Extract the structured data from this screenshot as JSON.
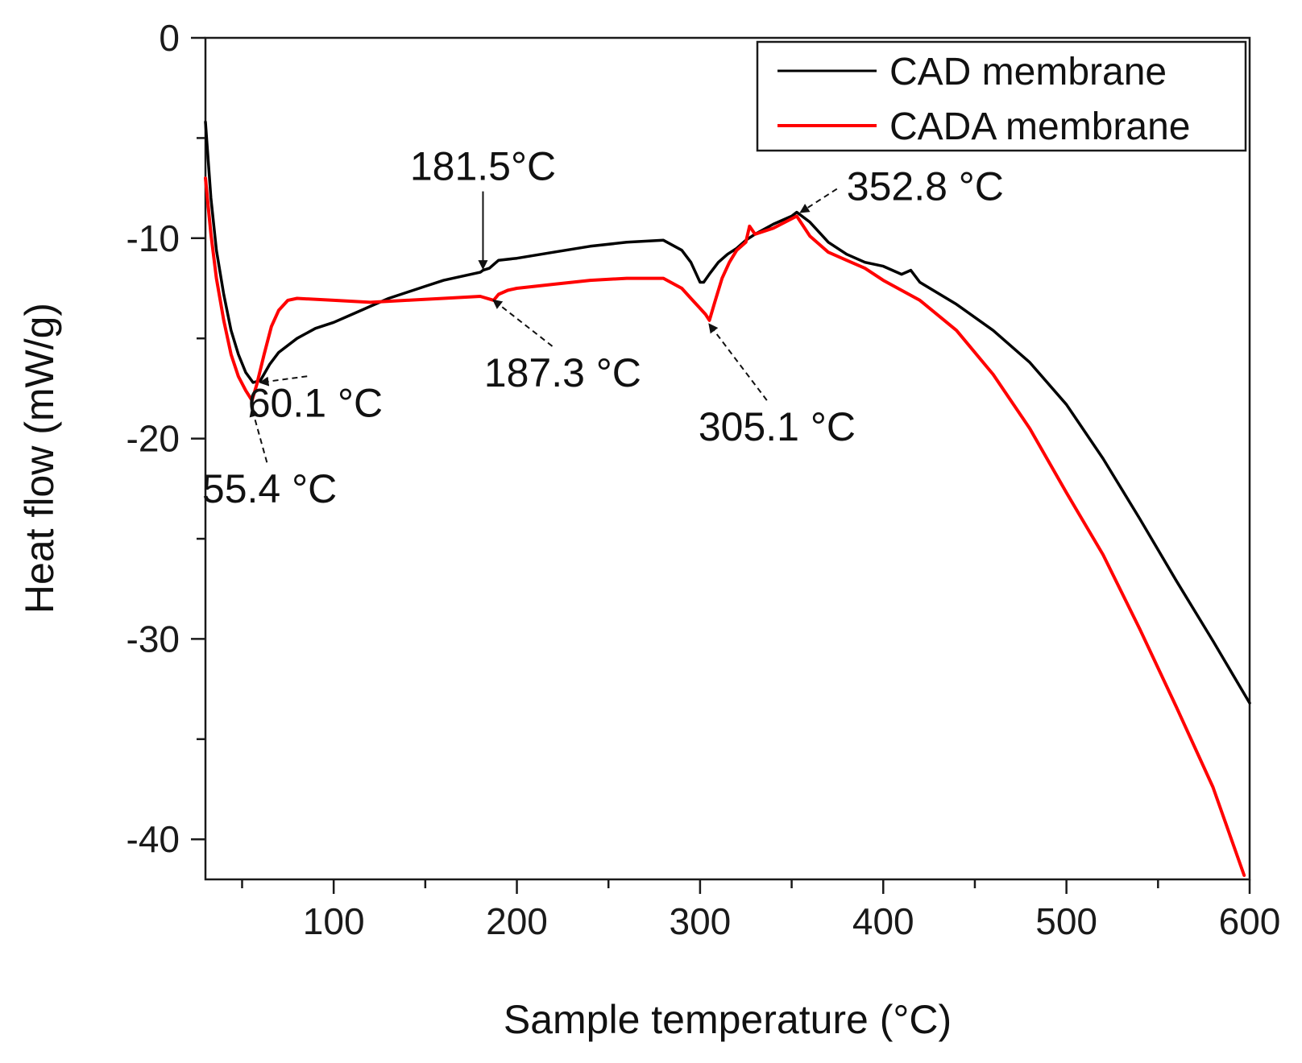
{
  "chart_data": {
    "type": "line",
    "title": "",
    "xlabel": "Sample temperature (°C)",
    "ylabel": "Heat flow (mW/g)",
    "xlim": [
      30,
      600
    ],
    "ylim": [
      -42,
      0
    ],
    "x_ticks": [
      100,
      200,
      300,
      400,
      500,
      600
    ],
    "x_minor_ticks": [
      50,
      150,
      250,
      350,
      450,
      550
    ],
    "y_ticks": [
      0,
      -10,
      -20,
      -30,
      -40
    ],
    "y_minor_ticks": [
      -5,
      -15,
      -25,
      -35
    ],
    "legend_position": "top-right",
    "series": [
      {
        "name": "CAD membrane",
        "color": "#000000",
        "x": [
          30,
          33,
          36,
          40,
          44,
          48,
          52,
          56,
          60,
          65,
          70,
          80,
          90,
          100,
          110,
          120,
          130,
          140,
          150,
          160,
          170,
          180,
          181.5,
          185,
          190,
          200,
          220,
          240,
          260,
          280,
          290,
          295,
          300,
          302,
          305,
          310,
          315,
          320,
          325,
          330,
          340,
          350,
          352.8,
          360,
          370,
          380,
          390,
          400,
          410,
          415,
          420,
          440,
          460,
          480,
          500,
          520,
          540,
          560,
          580,
          600
        ],
        "y": [
          -4.2,
          -8,
          -10.6,
          -12.8,
          -14.6,
          -15.8,
          -16.7,
          -17.2,
          -17.1,
          -16.3,
          -15.7,
          -15,
          -14.5,
          -14.2,
          -13.8,
          -13.4,
          -13,
          -12.7,
          -12.4,
          -12.1,
          -11.9,
          -11.7,
          -11.6,
          -11.5,
          -11.1,
          -11,
          -10.7,
          -10.4,
          -10.2,
          -10.1,
          -10.6,
          -11.2,
          -12.2,
          -12.2,
          -11.8,
          -11.2,
          -10.8,
          -10.5,
          -10.1,
          -9.8,
          -9.3,
          -8.9,
          -8.7,
          -9.2,
          -10.2,
          -10.8,
          -11.2,
          -11.4,
          -11.8,
          -11.6,
          -12.2,
          -13.3,
          -14.6,
          -16.2,
          -18.3,
          -21,
          -24,
          -27.1,
          -30.1,
          -33.2
        ]
      },
      {
        "name": "CADA membrane",
        "color": "#ff0000",
        "x": [
          30,
          33,
          36,
          40,
          44,
          48,
          52,
          55.4,
          58,
          62,
          66,
          70,
          75,
          80,
          100,
          120,
          140,
          160,
          180,
          187.3,
          190,
          195,
          200,
          220,
          240,
          260,
          280,
          290,
          295,
          300,
          303,
          305.1,
          308,
          312,
          316,
          320,
          325,
          327,
          330,
          340,
          352.8,
          360,
          370,
          380,
          390,
          400,
          420,
          440,
          460,
          480,
          500,
          520,
          540,
          560,
          580,
          597
        ],
        "y": [
          -7,
          -9.8,
          -12,
          -14.1,
          -15.8,
          -16.9,
          -17.6,
          -18.1,
          -17.3,
          -15.8,
          -14.4,
          -13.6,
          -13.1,
          -13,
          -13.1,
          -13.2,
          -13.1,
          -13,
          -12.9,
          -13.1,
          -12.8,
          -12.6,
          -12.5,
          -12.3,
          -12.1,
          -12,
          -12,
          -12.5,
          -13,
          -13.5,
          -13.8,
          -14.1,
          -13.2,
          -12,
          -11.2,
          -10.6,
          -10.2,
          -9.4,
          -9.8,
          -9.5,
          -8.9,
          -9.9,
          -10.7,
          -11.1,
          -11.5,
          -12.1,
          -13.1,
          -14.6,
          -16.8,
          -19.5,
          -22.7,
          -25.8,
          -29.5,
          -33.4,
          -37.4,
          -41.8
        ]
      }
    ],
    "annotations": [
      {
        "text": "181.5°C",
        "arrow_to": [
          181.5,
          -11.5
        ],
        "label_at": [
          181.5,
          -7.1
        ],
        "anchor": "middle",
        "style": "solid"
      },
      {
        "text": "352.8 °C",
        "arrow_to": [
          355,
          -8.7
        ],
        "label_at": [
          380,
          -8.1
        ],
        "anchor": "start",
        "style": "dashed"
      },
      {
        "text": "60.1 °C",
        "arrow_to": [
          60.1,
          -17.2
        ],
        "label_at": [
          90,
          -18.9
        ],
        "anchor": "middle",
        "style": "dashed"
      },
      {
        "text": "55.4 °C",
        "arrow_to": [
          55.4,
          -18.5
        ],
        "label_at": [
          65,
          -23.2
        ],
        "anchor": "middle",
        "style": "dashed"
      },
      {
        "text": "187.3 °C",
        "arrow_to": [
          187.3,
          -13.1
        ],
        "label_at": [
          225,
          -17.4
        ],
        "anchor": "middle",
        "style": "dashed"
      },
      {
        "text": "305.1 °C",
        "arrow_to": [
          305.1,
          -14.3
        ],
        "label_at": [
          342,
          -20.1
        ],
        "anchor": "middle",
        "style": "dashed"
      }
    ]
  }
}
